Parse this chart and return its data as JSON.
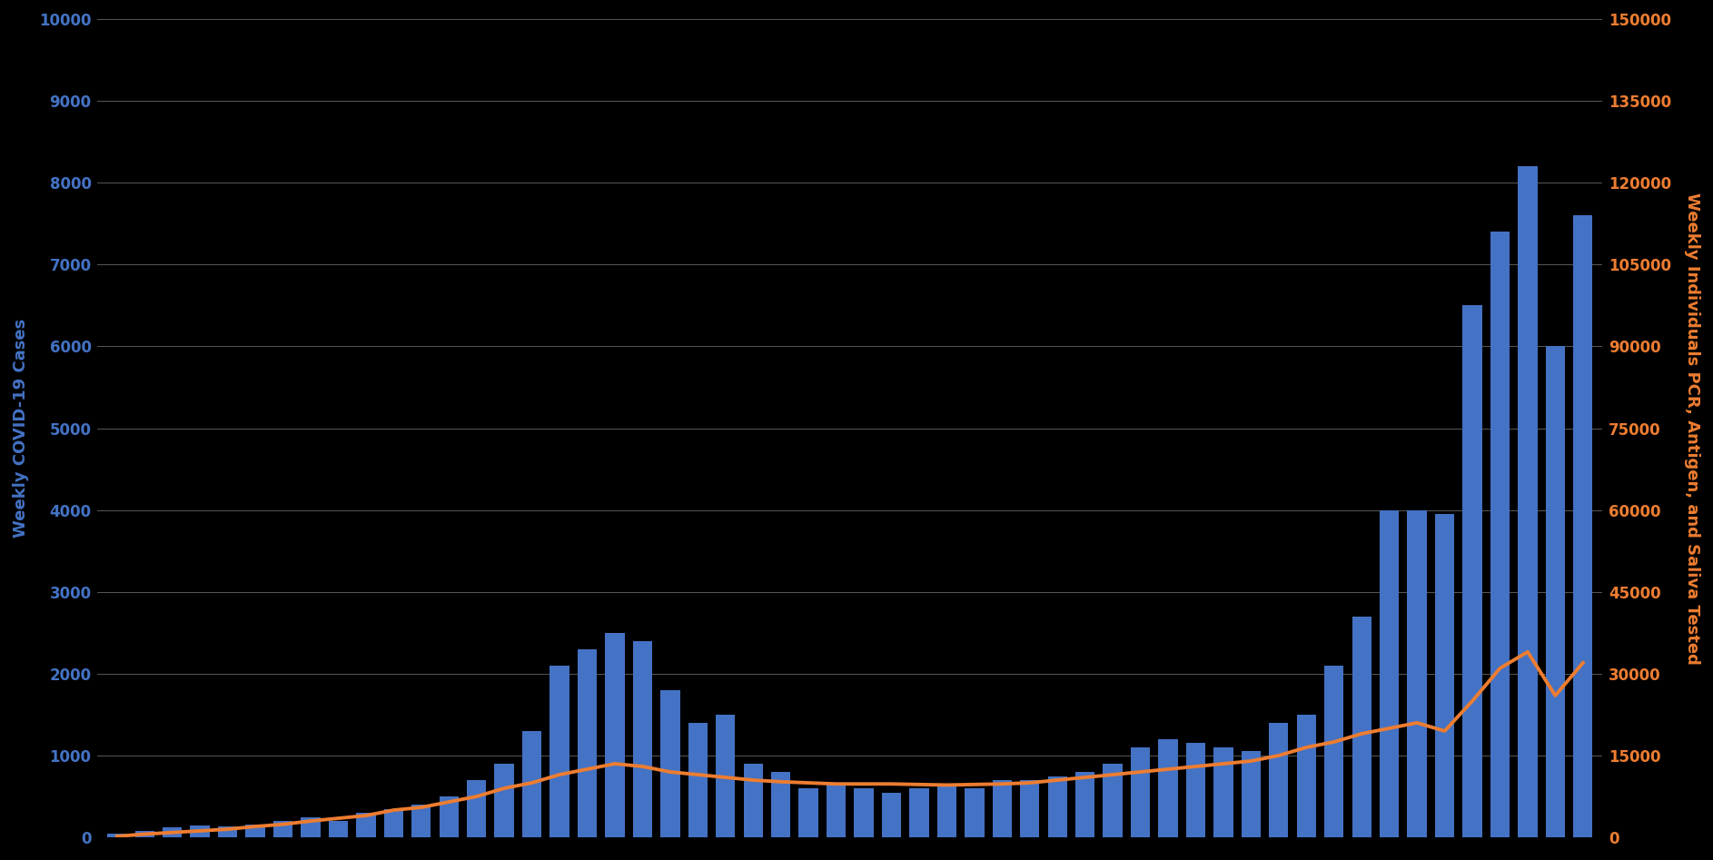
{
  "background_color": "#000000",
  "bar_color": "#4472C4",
  "line_color": "#ED7D31",
  "left_ylabel": "Weekly COVID-19 Cases",
  "right_ylabel": "Weekly Individuals PCR, Antigen, and Saliva Tested",
  "left_ylabel_color": "#4472C4",
  "right_ylabel_color": "#ED7D31",
  "left_ylim": [
    0,
    10000
  ],
  "right_ylim": [
    0,
    150000
  ],
  "left_yticks": [
    0,
    1000,
    2000,
    3000,
    4000,
    5000,
    6000,
    7000,
    8000,
    9000,
    10000
  ],
  "right_yticks": [
    0,
    15000,
    30000,
    45000,
    60000,
    75000,
    90000,
    105000,
    120000,
    135000,
    150000
  ],
  "grid_color": "#aaaaaa",
  "tick_color_left": "#4472C4",
  "tick_color_right": "#ED7D31",
  "bar_values": [
    50,
    80,
    120,
    150,
    130,
    160,
    200,
    250,
    200,
    300,
    350,
    400,
    500,
    700,
    900,
    1300,
    2100,
    2300,
    2500,
    2400,
    1800,
    1400,
    1500,
    900,
    800,
    600,
    650,
    600,
    550,
    600,
    650,
    600,
    700,
    700,
    750,
    800,
    900,
    1100,
    1200,
    1150,
    1100,
    1050,
    1400,
    1500,
    2100,
    2700,
    4000,
    4000,
    3950,
    6500,
    7400,
    8200,
    6000,
    7600
  ],
  "line_values": [
    200,
    600,
    900,
    1200,
    1500,
    2000,
    2400,
    3000,
    3500,
    4000,
    5000,
    5500,
    6500,
    7500,
    9000,
    10000,
    11500,
    12500,
    13500,
    13000,
    12000,
    11500,
    11000,
    10500,
    10200,
    10000,
    9800,
    9800,
    9800,
    9700,
    9600,
    9700,
    9800,
    10000,
    10500,
    11000,
    11500,
    12000,
    12500,
    13000,
    13500,
    14000,
    15000,
    16500,
    17500,
    19000,
    20000,
    21000,
    19500,
    25000,
    31000,
    34000,
    26000,
    32000
  ],
  "n_bars": 54,
  "tick_fontsize": 12,
  "ylabel_fontsize": 13
}
